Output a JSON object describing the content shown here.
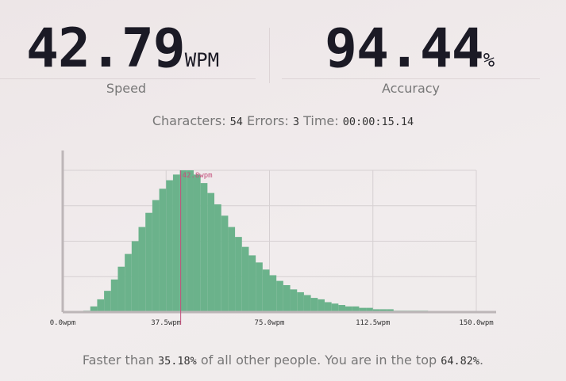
{
  "header": {
    "speed": {
      "value": "42.79",
      "unit": "WPM",
      "label": "Speed"
    },
    "accuracy": {
      "value": "94.44",
      "unit": "%",
      "label": "Accuracy"
    }
  },
  "stats": {
    "characters_label": "Characters:",
    "characters": "54",
    "errors_label": "Errors:",
    "errors": "3",
    "time_label": "Time:",
    "time": "00:00:15.14"
  },
  "chart_data": {
    "type": "histogram",
    "bins": [
      0,
      2.5,
      5,
      7.5,
      10,
      12.5,
      15,
      17.5,
      20,
      22.5,
      25,
      27.5,
      30,
      32.5,
      35,
      37.5,
      40,
      42.5,
      45,
      47.5,
      50,
      52.5,
      55,
      57.5,
      60,
      62.5,
      65,
      67.5,
      70,
      72.5,
      75,
      77.5,
      80,
      82.5,
      85,
      87.5,
      90,
      92.5,
      95,
      97.5,
      100,
      102.5,
      105,
      107.5,
      110,
      112.5,
      115,
      117.5,
      120,
      122.5,
      125,
      127.5,
      130,
      132.5,
      135,
      137.5,
      140,
      142.5,
      145,
      147.5,
      150
    ],
    "values": [
      0,
      0,
      0,
      1,
      4,
      9,
      15,
      23,
      32,
      41,
      50,
      60,
      70,
      79,
      87,
      93,
      97,
      100,
      100,
      97,
      91,
      84,
      76,
      68,
      60,
      53,
      46,
      40,
      35,
      30,
      26,
      22,
      19,
      16,
      14,
      12,
      10,
      9,
      7,
      6,
      5,
      4,
      4,
      3,
      3,
      2,
      2,
      2,
      1,
      1,
      1,
      1,
      1,
      0.5,
      0.5,
      0,
      0,
      0,
      0,
      0
    ],
    "color": "#6bb28b",
    "xlim": [
      0,
      150
    ],
    "xticks": [
      {
        "value": 0,
        "label": "0.0wpm"
      },
      {
        "value": 37.5,
        "label": "37.5wpm"
      },
      {
        "value": 75,
        "label": "75.0wpm"
      },
      {
        "value": 112.5,
        "label": "112.5wpm"
      },
      {
        "value": 150,
        "label": "150.0wpm"
      }
    ],
    "ylim": [
      0,
      100
    ],
    "yticks": [
      0,
      25,
      50,
      75,
      100
    ],
    "grid": true,
    "marker": {
      "value": 42.79,
      "label": "42.8wpm",
      "color": "#c4507c"
    }
  },
  "footer": {
    "before": "Faster than",
    "faster": "35.18%",
    "middle": "of all other people. You are in the top",
    "top": "64.82%",
    "end": "."
  }
}
